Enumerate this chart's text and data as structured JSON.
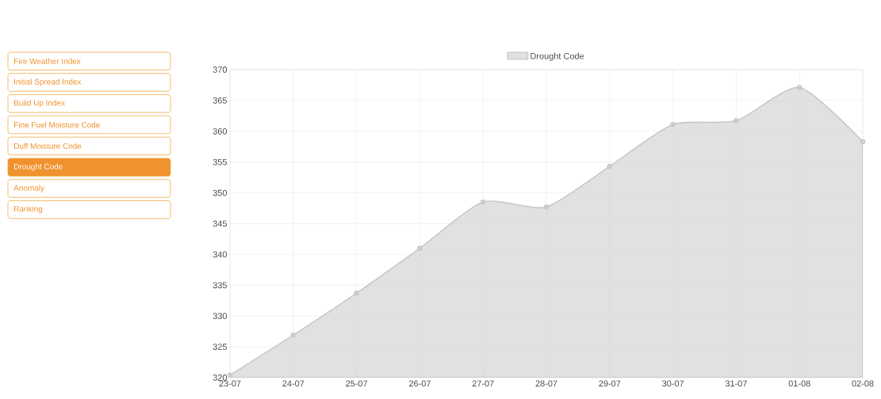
{
  "chart_data": [
    {
      "type": "area",
      "categories": [
        "23-07",
        "24-07",
        "25-07",
        "26-07",
        "27-07",
        "28-07",
        "29-07",
        "30-07",
        "31-07",
        "01-08",
        "02-08"
      ],
      "series": [
        {
          "name": "Drought Code",
          "color": "#c8c8c8",
          "values": [
            320.4,
            326.9,
            333.7,
            341.0,
            348.5,
            347.7,
            354.3,
            361.1,
            361.7,
            367.1,
            358.3
          ]
        }
      ],
      "ylim": [
        320,
        370
      ],
      "yticks": [
        320,
        325,
        330,
        335,
        340,
        345,
        350,
        355,
        360,
        365,
        370
      ],
      "grid": true,
      "legend": "top",
      "marker": "circle"
    },
    {
      "type": "other",
      "annotations": [
        "Fire Weather Index",
        "Initial Spread Index",
        "Build Up Index",
        "Fine Fuel Moisture Code",
        "Duff Moisture Code",
        "Drought Code",
        "Anomaly",
        "Ranking"
      ],
      "colors": [
        "#ffffff",
        "#ffffff",
        "#ffffff",
        "#ffffff",
        "#ffffff",
        "#f0922e",
        "#ffffff",
        "#ffffff"
      ]
    }
  ]
}
